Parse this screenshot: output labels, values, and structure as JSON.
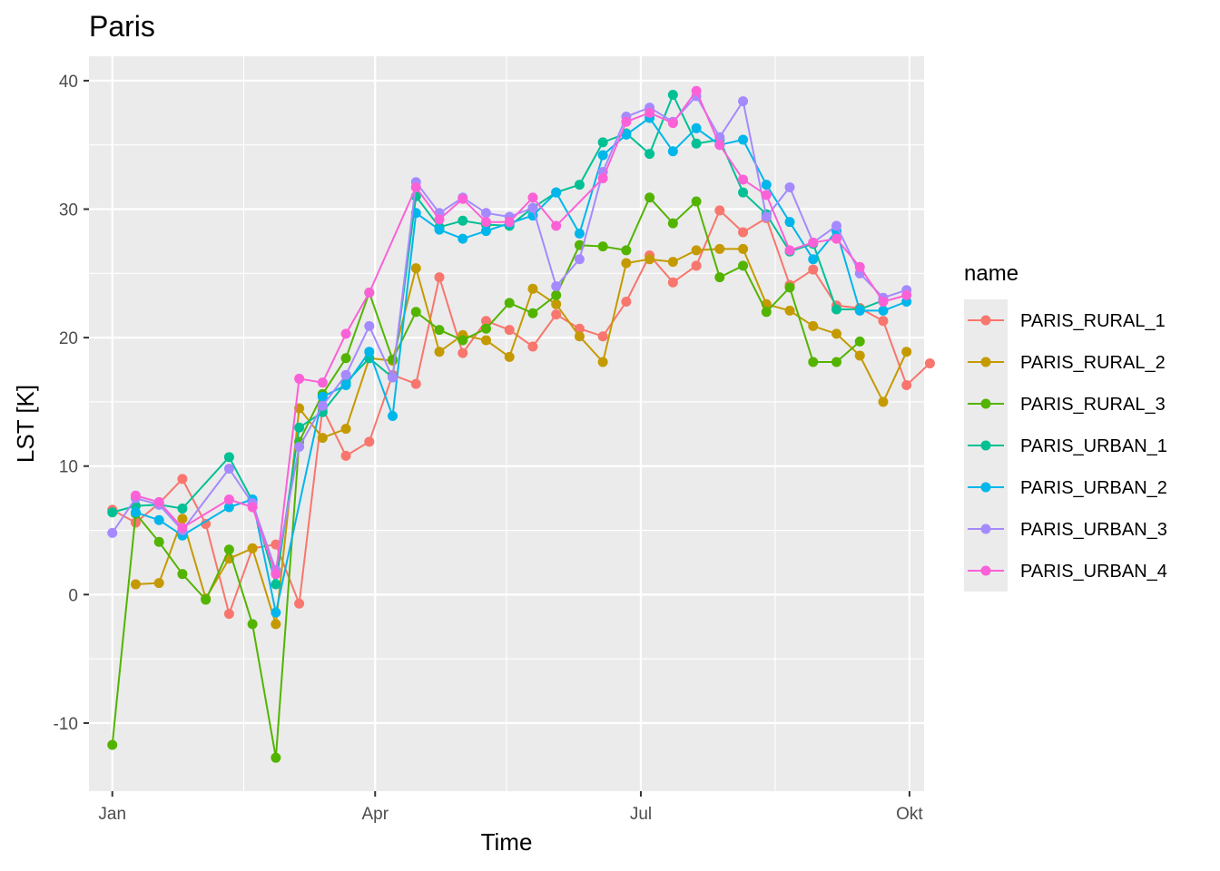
{
  "chart_data": {
    "type": "line",
    "title": "Paris",
    "xlabel": "Time",
    "ylabel": "LST [K]",
    "legend_title": "name",
    "legend_position": "right",
    "grid": true,
    "ylim": [
      -15.3,
      41.9
    ],
    "xlim": [
      "2020-12-24",
      "2021-10-06"
    ],
    "x_ticks": [
      {
        "date": "2021-01-01",
        "label": "Jan"
      },
      {
        "date": "2021-04-01",
        "label": "Apr"
      },
      {
        "date": "2021-07-01",
        "label": "Jul"
      },
      {
        "date": "2021-10-01",
        "label": "Okt"
      }
    ],
    "x_minor_ticks": [
      "2021-02-15",
      "2021-05-16",
      "2021-08-16"
    ],
    "y_ticks": [
      -10,
      0,
      10,
      20,
      30,
      40
    ],
    "y_minor_ticks": [
      -5,
      5,
      15,
      25,
      35
    ],
    "series": [
      {
        "name": "PARIS_RURAL_1",
        "color": "#F8766D",
        "points": [
          [
            "2021-01-01",
            6.6
          ],
          [
            "2021-01-09",
            5.6
          ],
          [
            "2021-01-17",
            7.1
          ],
          [
            "2021-01-25",
            9.0
          ],
          [
            "2021-02-02",
            5.5
          ],
          [
            "2021-02-10",
            -1.5
          ],
          [
            "2021-02-18",
            3.6
          ],
          [
            "2021-02-26",
            3.9
          ],
          [
            "2021-03-06",
            -0.7
          ],
          [
            "2021-03-14",
            14.5
          ],
          [
            "2021-03-22",
            10.8
          ],
          [
            "2021-03-30",
            11.9
          ],
          [
            "2021-04-07",
            17.1
          ],
          [
            "2021-04-15",
            16.4
          ],
          [
            "2021-04-23",
            24.7
          ],
          [
            "2021-05-01",
            18.8
          ],
          [
            "2021-05-09",
            21.3
          ],
          [
            "2021-05-17",
            20.6
          ],
          [
            "2021-05-25",
            19.3
          ],
          [
            "2021-06-02",
            21.8
          ],
          [
            "2021-06-10",
            20.7
          ],
          [
            "2021-06-18",
            20.1
          ],
          [
            "2021-06-26",
            22.8
          ],
          [
            "2021-07-04",
            26.4
          ],
          [
            "2021-07-12",
            24.3
          ],
          [
            "2021-07-20",
            25.6
          ],
          [
            "2021-07-28",
            29.9
          ],
          [
            "2021-08-05",
            28.2
          ],
          [
            "2021-08-13",
            29.3
          ],
          [
            "2021-08-21",
            24.1
          ],
          [
            "2021-08-29",
            25.3
          ],
          [
            "2021-09-06",
            22.5
          ],
          [
            "2021-09-14",
            22.3
          ],
          [
            "2021-09-22",
            21.3
          ],
          [
            "2021-09-30",
            16.3
          ],
          [
            "2021-10-08",
            18.0
          ]
        ]
      },
      {
        "name": "PARIS_RURAL_2",
        "color": "#C49A00",
        "points": [
          [
            "2021-01-09",
            0.8
          ],
          [
            "2021-01-17",
            0.9
          ],
          [
            "2021-01-25",
            5.9
          ],
          [
            "2021-02-02",
            -0.3
          ],
          [
            "2021-02-10",
            2.8
          ],
          [
            "2021-02-18",
            3.6
          ],
          [
            "2021-02-26",
            -2.3
          ],
          [
            "2021-03-06",
            14.5
          ],
          [
            "2021-03-14",
            12.2
          ],
          [
            "2021-03-22",
            12.9
          ],
          [
            "2021-03-30",
            18.4
          ],
          [
            "2021-04-07",
            18.2
          ],
          [
            "2021-04-15",
            25.4
          ],
          [
            "2021-04-23",
            18.9
          ],
          [
            "2021-05-01",
            20.2
          ],
          [
            "2021-05-09",
            19.8
          ],
          [
            "2021-05-17",
            18.5
          ],
          [
            "2021-05-25",
            23.8
          ],
          [
            "2021-06-02",
            22.6
          ],
          [
            "2021-06-10",
            20.1
          ],
          [
            "2021-06-18",
            18.1
          ],
          [
            "2021-06-26",
            25.8
          ],
          [
            "2021-07-04",
            26.1
          ],
          [
            "2021-07-12",
            25.9
          ],
          [
            "2021-07-20",
            26.8
          ],
          [
            "2021-07-28",
            26.9
          ],
          [
            "2021-08-05",
            26.9
          ],
          [
            "2021-08-13",
            22.6
          ],
          [
            "2021-08-21",
            22.1
          ],
          [
            "2021-08-29",
            20.9
          ],
          [
            "2021-09-06",
            20.3
          ],
          [
            "2021-09-14",
            18.6
          ],
          [
            "2021-09-22",
            15.0
          ],
          [
            "2021-09-30",
            18.9
          ]
        ]
      },
      {
        "name": "PARIS_RURAL_3",
        "color": "#53B400",
        "points": [
          [
            "2021-01-01",
            -11.7
          ],
          [
            "2021-01-09",
            6.3
          ],
          [
            "2021-01-17",
            4.1
          ],
          [
            "2021-01-25",
            1.6
          ],
          [
            "2021-02-02",
            -0.4
          ],
          [
            "2021-02-10",
            3.5
          ],
          [
            "2021-02-18",
            -2.3
          ],
          [
            "2021-02-26",
            -12.7
          ],
          [
            "2021-03-06",
            11.9
          ],
          [
            "2021-03-14",
            15.6
          ],
          [
            "2021-03-22",
            18.4
          ],
          [
            "2021-03-30",
            23.5
          ],
          [
            "2021-04-07",
            18.3
          ],
          [
            "2021-04-15",
            22.0
          ],
          [
            "2021-04-23",
            20.6
          ],
          [
            "2021-05-01",
            19.8
          ],
          [
            "2021-05-09",
            20.7
          ],
          [
            "2021-05-17",
            22.7
          ],
          [
            "2021-05-25",
            21.9
          ],
          [
            "2021-06-02",
            23.3
          ],
          [
            "2021-06-10",
            27.2
          ],
          [
            "2021-06-18",
            27.1
          ],
          [
            "2021-06-26",
            26.8
          ],
          [
            "2021-07-04",
            30.9
          ],
          [
            "2021-07-12",
            28.9
          ],
          [
            "2021-07-20",
            30.6
          ],
          [
            "2021-07-28",
            24.7
          ],
          [
            "2021-08-05",
            25.6
          ],
          [
            "2021-08-13",
            22.0
          ],
          [
            "2021-08-21",
            23.9
          ],
          [
            "2021-08-29",
            18.1
          ],
          [
            "2021-09-06",
            18.1
          ],
          [
            "2021-09-14",
            19.7
          ]
        ]
      },
      {
        "name": "PARIS_URBAN_1",
        "color": "#00C094",
        "points": [
          [
            "2021-01-01",
            6.4
          ],
          [
            "2021-01-09",
            6.9
          ],
          [
            "2021-01-17",
            7.0
          ],
          [
            "2021-01-25",
            6.7
          ],
          [
            "2021-02-10",
            10.7
          ],
          [
            "2021-02-18",
            7.3
          ],
          [
            "2021-02-26",
            0.8
          ],
          [
            "2021-03-06",
            13.0
          ],
          [
            "2021-03-14",
            14.2
          ],
          [
            "2021-03-22",
            16.5
          ],
          [
            "2021-03-30",
            18.4
          ],
          [
            "2021-04-07",
            16.9
          ],
          [
            "2021-04-15",
            31.0
          ],
          [
            "2021-04-23",
            28.6
          ],
          [
            "2021-05-01",
            29.1
          ],
          [
            "2021-05-09",
            28.8
          ],
          [
            "2021-05-17",
            28.7
          ],
          [
            "2021-05-25",
            30.1
          ],
          [
            "2021-06-02",
            31.3
          ],
          [
            "2021-06-10",
            31.9
          ],
          [
            "2021-06-18",
            35.2
          ],
          [
            "2021-06-26",
            35.9
          ],
          [
            "2021-07-04",
            34.3
          ],
          [
            "2021-07-12",
            38.9
          ],
          [
            "2021-07-20",
            35.1
          ],
          [
            "2021-07-28",
            35.4
          ],
          [
            "2021-08-05",
            31.3
          ],
          [
            "2021-08-13",
            29.6
          ],
          [
            "2021-08-21",
            26.7
          ],
          [
            "2021-08-29",
            27.3
          ],
          [
            "2021-09-06",
            22.2
          ],
          [
            "2021-09-14",
            22.2
          ],
          [
            "2021-09-22",
            22.9
          ]
        ]
      },
      {
        "name": "PARIS_URBAN_2",
        "color": "#00B6EB",
        "points": [
          [
            "2021-01-09",
            6.4
          ],
          [
            "2021-01-17",
            5.8
          ],
          [
            "2021-01-25",
            4.6
          ],
          [
            "2021-02-10",
            6.8
          ],
          [
            "2021-02-18",
            7.4
          ],
          [
            "2021-02-26",
            -1.4
          ],
          [
            "2021-03-14",
            15.4
          ],
          [
            "2021-03-22",
            16.3
          ],
          [
            "2021-03-30",
            18.9
          ],
          [
            "2021-04-07",
            13.9
          ],
          [
            "2021-04-15",
            29.7
          ],
          [
            "2021-04-23",
            28.4
          ],
          [
            "2021-05-01",
            27.7
          ],
          [
            "2021-05-09",
            28.3
          ],
          [
            "2021-05-17",
            28.9
          ],
          [
            "2021-05-25",
            29.5
          ],
          [
            "2021-06-02",
            31.3
          ],
          [
            "2021-06-10",
            28.1
          ],
          [
            "2021-06-18",
            34.2
          ],
          [
            "2021-06-26",
            35.8
          ],
          [
            "2021-07-04",
            37.1
          ],
          [
            "2021-07-12",
            34.5
          ],
          [
            "2021-07-20",
            36.3
          ],
          [
            "2021-07-28",
            35.0
          ],
          [
            "2021-08-05",
            35.4
          ],
          [
            "2021-08-13",
            31.9
          ],
          [
            "2021-08-21",
            29.0
          ],
          [
            "2021-08-29",
            26.1
          ],
          [
            "2021-09-06",
            28.3
          ],
          [
            "2021-09-14",
            22.1
          ],
          [
            "2021-09-22",
            22.1
          ],
          [
            "2021-09-30",
            22.8
          ]
        ]
      },
      {
        "name": "PARIS_URBAN_3",
        "color": "#A58AFF",
        "points": [
          [
            "2021-01-01",
            4.8
          ],
          [
            "2021-01-09",
            7.5
          ],
          [
            "2021-01-17",
            7.0
          ],
          [
            "2021-01-25",
            5.0
          ],
          [
            "2021-02-10",
            9.8
          ],
          [
            "2021-02-18",
            7.1
          ],
          [
            "2021-02-26",
            1.9
          ],
          [
            "2021-03-06",
            11.5
          ],
          [
            "2021-03-14",
            14.7
          ],
          [
            "2021-03-22",
            17.1
          ],
          [
            "2021-03-30",
            20.9
          ],
          [
            "2021-04-07",
            16.9
          ],
          [
            "2021-04-15",
            32.1
          ],
          [
            "2021-04-23",
            29.7
          ],
          [
            "2021-05-01",
            30.9
          ],
          [
            "2021-05-09",
            29.7
          ],
          [
            "2021-05-17",
            29.4
          ],
          [
            "2021-05-25",
            30.1
          ],
          [
            "2021-06-02",
            24.0
          ],
          [
            "2021-06-10",
            26.1
          ],
          [
            "2021-06-18",
            32.9
          ],
          [
            "2021-06-26",
            37.2
          ],
          [
            "2021-07-04",
            37.9
          ],
          [
            "2021-07-12",
            36.8
          ],
          [
            "2021-07-20",
            38.8
          ],
          [
            "2021-07-28",
            35.6
          ],
          [
            "2021-08-05",
            38.4
          ],
          [
            "2021-08-13",
            29.4
          ],
          [
            "2021-08-21",
            31.7
          ],
          [
            "2021-08-29",
            27.4
          ],
          [
            "2021-09-06",
            28.7
          ],
          [
            "2021-09-14",
            25.0
          ],
          [
            "2021-09-22",
            23.1
          ],
          [
            "2021-09-30",
            23.7
          ]
        ]
      },
      {
        "name": "PARIS_URBAN_4",
        "color": "#FB61D7",
        "points": [
          [
            "2021-01-09",
            7.7
          ],
          [
            "2021-01-17",
            7.2
          ],
          [
            "2021-01-25",
            5.2
          ],
          [
            "2021-02-10",
            7.4
          ],
          [
            "2021-02-18",
            6.8
          ],
          [
            "2021-02-26",
            1.6
          ],
          [
            "2021-03-06",
            16.8
          ],
          [
            "2021-03-14",
            16.5
          ],
          [
            "2021-03-22",
            20.3
          ],
          [
            "2021-03-30",
            23.5
          ],
          [
            "2021-04-15",
            31.7
          ],
          [
            "2021-04-23",
            29.2
          ],
          [
            "2021-05-01",
            30.8
          ],
          [
            "2021-05-09",
            29.0
          ],
          [
            "2021-05-17",
            29.0
          ],
          [
            "2021-05-25",
            30.9
          ],
          [
            "2021-06-02",
            28.7
          ],
          [
            "2021-06-18",
            32.4
          ],
          [
            "2021-06-26",
            36.8
          ],
          [
            "2021-07-04",
            37.5
          ],
          [
            "2021-07-12",
            36.7
          ],
          [
            "2021-07-20",
            39.2
          ],
          [
            "2021-07-28",
            35.0
          ],
          [
            "2021-08-05",
            32.3
          ],
          [
            "2021-08-13",
            31.1
          ],
          [
            "2021-08-21",
            26.8
          ],
          [
            "2021-08-29",
            27.4
          ],
          [
            "2021-09-06",
            27.7
          ],
          [
            "2021-09-14",
            25.5
          ],
          [
            "2021-09-22",
            22.8
          ],
          [
            "2021-09-30",
            23.3
          ]
        ]
      }
    ]
  }
}
